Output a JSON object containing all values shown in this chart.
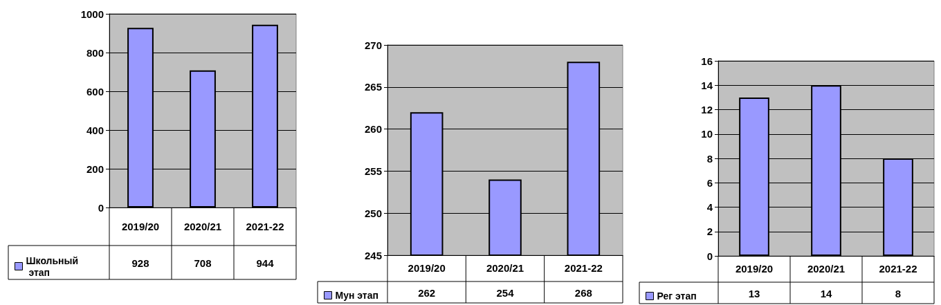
{
  "chart_data": [
    {
      "type": "bar",
      "categories": [
        "2019/20",
        "2020/21",
        "2021-22"
      ],
      "series": [
        {
          "name": "Школьный этап",
          "color": "#9999ff",
          "values": [
            928,
            708,
            944
          ]
        }
      ],
      "ylim": [
        0,
        1000
      ],
      "yticks": [
        0,
        200,
        400,
        600,
        800,
        1000
      ],
      "grid": "y",
      "legend": "bottom left",
      "data_labels": true
    },
    {
      "type": "bar",
      "categories": [
        "2019/20",
        "2020/21",
        "2021-22"
      ],
      "series": [
        {
          "name": "Мун этап",
          "color": "#9999ff",
          "values": [
            262,
            254,
            268
          ]
        }
      ],
      "ylim": [
        245,
        270
      ],
      "yticks": [
        245,
        250,
        255,
        260,
        265,
        270
      ],
      "grid": "y",
      "legend": "bottom left",
      "data_labels": true
    },
    {
      "type": "bar",
      "categories": [
        "2019/20",
        "2020/21",
        "2021-22"
      ],
      "series": [
        {
          "name": "Рег этап",
          "color": "#9999ff",
          "values": [
            13,
            14,
            8
          ]
        }
      ],
      "ylim": [
        0,
        16
      ],
      "yticks": [
        0,
        2,
        4,
        6,
        8,
        10,
        12,
        14,
        16
      ],
      "grid": "y",
      "legend": "bottom left",
      "data_labels": true
    }
  ]
}
